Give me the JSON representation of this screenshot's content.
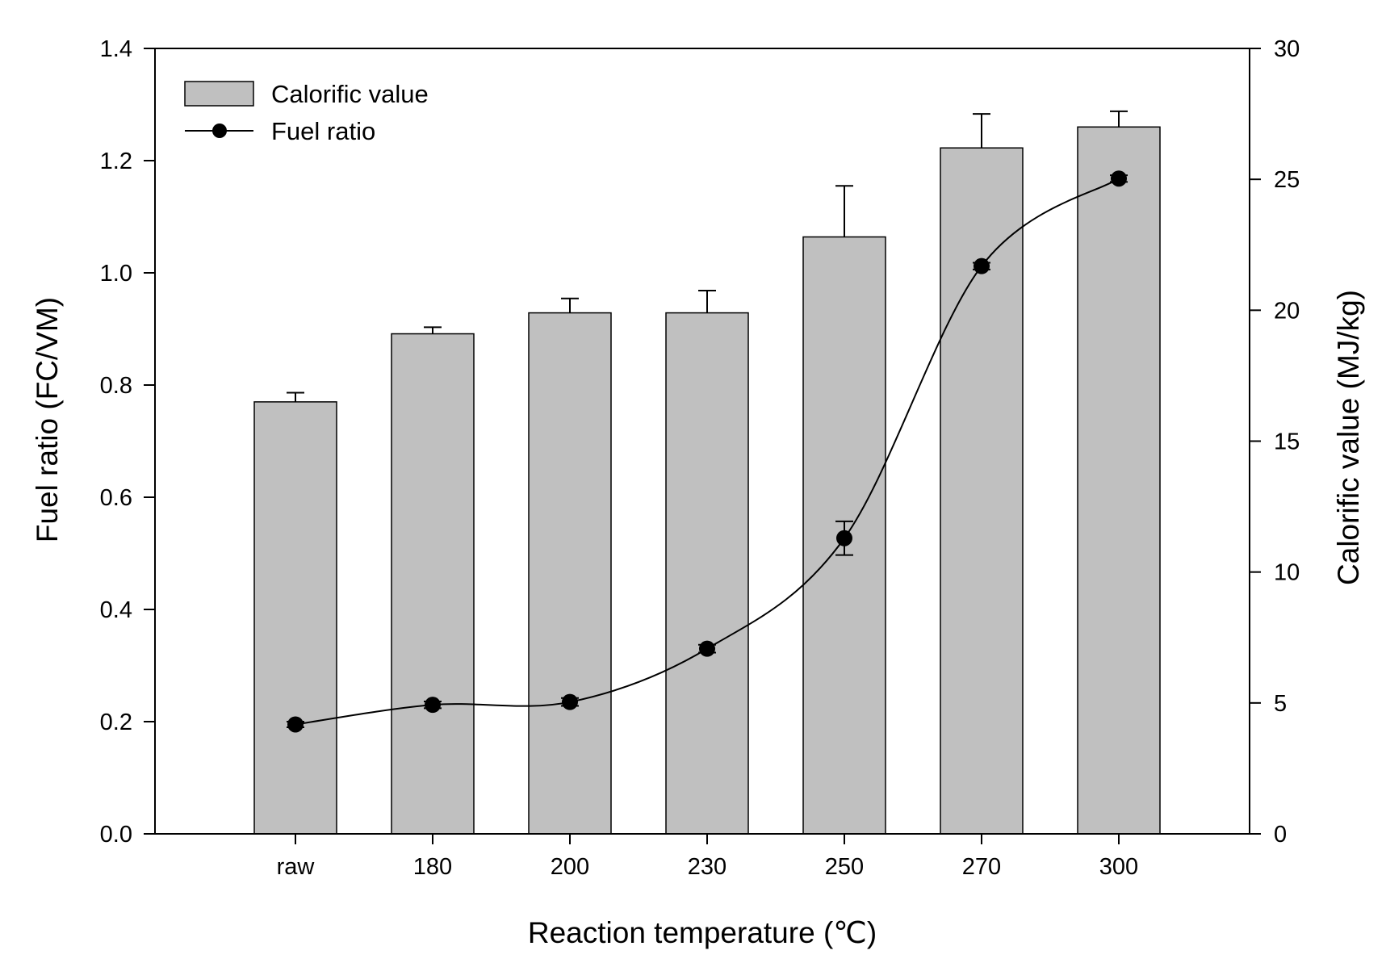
{
  "chart_data": {
    "type": "bar+line",
    "categories": [
      "raw",
      "180",
      "200",
      "230",
      "250",
      "270",
      "300"
    ],
    "xlabel": "Reaction temperature (℃)",
    "ylabel_left": "Fuel ratio (FC/VM)",
    "ylabel_right": "Calorific value (MJ/kg)",
    "left_axis": {
      "min": 0,
      "max": 1.4,
      "ticks": [
        "0.0",
        "0.2",
        "0.4",
        "0.6",
        "0.8",
        "1.0",
        "1.2",
        "1.4"
      ]
    },
    "right_axis": {
      "min": 0,
      "max": 30,
      "ticks": [
        "0",
        "5",
        "10",
        "15",
        "20",
        "25",
        "30"
      ]
    },
    "series": [
      {
        "name": "Calorific value",
        "type": "bar",
        "axis": "right",
        "color": "#c0c0c0",
        "values": [
          16.5,
          19.1,
          19.9,
          19.9,
          22.8,
          26.2,
          27.0
        ],
        "errors": [
          0.35,
          0.25,
          0.55,
          0.85,
          1.95,
          1.3,
          0.6
        ]
      },
      {
        "name": "Fuel ratio",
        "type": "line",
        "axis": "left",
        "color": "#000000",
        "values": [
          0.195,
          0.23,
          0.235,
          0.33,
          0.527,
          1.012,
          1.168
        ],
        "errors": [
          0.005,
          0.006,
          0.007,
          0.007,
          0.03,
          0.006,
          0.006
        ]
      }
    ],
    "legend": {
      "placement": "top-left",
      "items": [
        "Calorific value",
        "Fuel ratio"
      ]
    }
  }
}
